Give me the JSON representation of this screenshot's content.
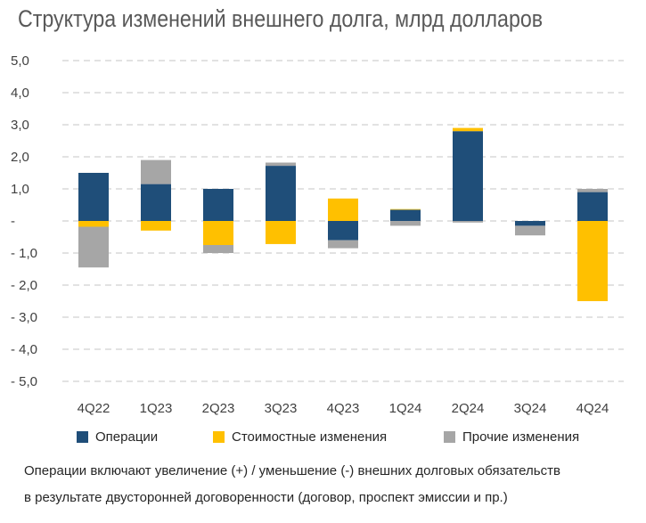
{
  "title": "Структура изменений внешнего долга, млрд долларов",
  "legend": {
    "operations": "Операции",
    "valuation": "Стоимостные изменения",
    "other": "Прочие изменения"
  },
  "note": {
    "line1": "Операции включают увеличение (+) / уменьшение (-) внешних долговых обязательств",
    "line2": "в результате двусторонней договоренности (договор, проспект эмиссии и пр.)"
  },
  "colors": {
    "operations": "#1F4E79",
    "valuation": "#FFC000",
    "other": "#A6A6A6"
  },
  "chart_data": {
    "type": "bar",
    "stacked": true,
    "title": "Структура изменений внешнего долга, млрд долларов",
    "categories": [
      "4Q22",
      "1Q23",
      "2Q23",
      "3Q23",
      "4Q23",
      "1Q24",
      "2Q24",
      "3Q24",
      "4Q24"
    ],
    "series": [
      {
        "name": "Операции",
        "values": [
          1.5,
          1.15,
          1.0,
          1.72,
          -0.6,
          0.35,
          2.8,
          -0.15,
          0.9
        ]
      },
      {
        "name": "Стоимостные изменения",
        "values": [
          -0.18,
          -0.3,
          -0.75,
          -0.72,
          0.7,
          0.02,
          0.1,
          0.0,
          -2.5
        ]
      },
      {
        "name": "Прочие изменения",
        "values": [
          -1.27,
          0.75,
          -0.25,
          0.1,
          -0.25,
          -0.15,
          -0.05,
          -0.3,
          0.1
        ]
      }
    ],
    "ylim": [
      -5,
      5
    ],
    "ytick_labels": [
      "5,0",
      "4,0",
      "3,0",
      "2,0",
      "1,0",
      "-",
      "- 1,0",
      "- 2,0",
      "- 3,0",
      "- 4,0",
      "- 5,0"
    ],
    "grid": true,
    "legend_position": "bottom"
  }
}
